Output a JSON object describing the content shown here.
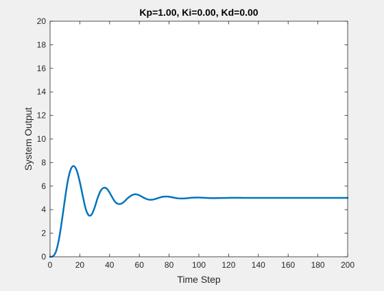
{
  "chart_data": {
    "type": "line",
    "title": "Kp=1.00, Ki=0.00, Kd=0.00",
    "xlabel": "Time Step",
    "ylabel": "System Output",
    "xlim": [
      0,
      200
    ],
    "ylim": [
      0,
      20
    ],
    "xticks": [
      0,
      20,
      40,
      60,
      80,
      100,
      120,
      140,
      160,
      180,
      200
    ],
    "yticks": [
      0,
      2,
      4,
      6,
      8,
      10,
      12,
      14,
      16,
      18,
      20
    ],
    "xtick_labels": [
      "0",
      "20",
      "40",
      "60",
      "80",
      "100",
      "120",
      "140",
      "160",
      "180",
      "200"
    ],
    "ytick_labels": [
      "0",
      "2",
      "4",
      "6",
      "8",
      "10",
      "12",
      "14",
      "16",
      "18",
      "20"
    ],
    "grid": false,
    "colors": {
      "line": "#0072bd",
      "axes": "#262626",
      "background": "#ffffff",
      "figure": "#f0f0f0"
    },
    "series": [
      {
        "x": [
          0,
          2,
          4,
          6,
          8,
          10,
          12,
          14,
          16,
          18,
          20,
          22,
          24,
          26,
          28,
          30,
          32,
          34,
          36,
          38,
          40,
          42,
          44,
          46,
          48,
          50,
          52,
          54,
          56,
          58,
          60,
          62,
          64,
          66,
          68,
          70,
          72,
          74,
          76,
          78,
          80,
          82,
          84,
          86,
          88,
          90,
          92,
          94,
          96,
          98,
          100,
          105,
          110,
          115,
          120,
          125,
          130,
          135,
          140,
          150,
          160,
          170,
          180,
          190,
          200
        ],
        "y": [
          0.0,
          0.05,
          0.45,
          1.5,
          3.1,
          4.9,
          6.5,
          7.45,
          7.7,
          7.3,
          6.35,
          5.15,
          4.05,
          3.52,
          3.6,
          4.2,
          5.0,
          5.6,
          5.85,
          5.8,
          5.45,
          5.0,
          4.62,
          4.48,
          4.52,
          4.7,
          4.95,
          5.15,
          5.28,
          5.3,
          5.22,
          5.08,
          4.95,
          4.86,
          4.84,
          4.88,
          4.96,
          5.04,
          5.1,
          5.12,
          5.1,
          5.05,
          5.0,
          4.96,
          4.95,
          4.95,
          4.97,
          5.0,
          5.02,
          5.03,
          5.03,
          5.0,
          4.98,
          4.99,
          5.0,
          5.01,
          5.0,
          5.0,
          5.0,
          5.0,
          5.0,
          5.0,
          5.0,
          5.0,
          5.0
        ]
      }
    ]
  }
}
